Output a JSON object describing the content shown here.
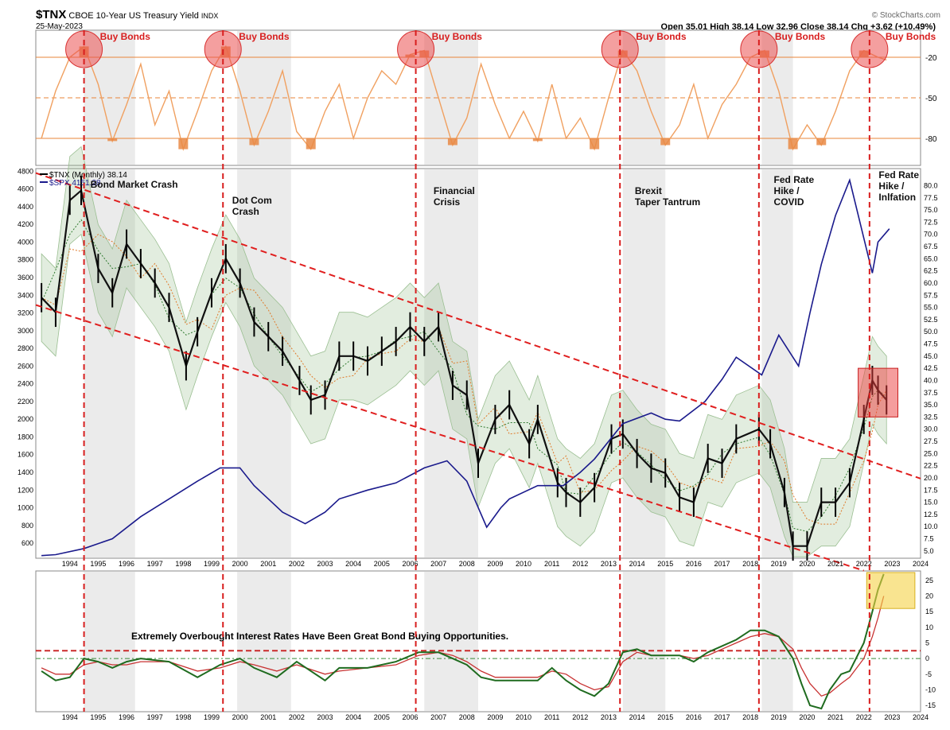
{
  "header": {
    "symbol": "$TNX",
    "name": "CBOE 10-Year US Treasury Yield",
    "exchange": "INDX",
    "date": "25-May-2023",
    "brand": "© StockCharts.com",
    "quote": "Open 35.01  High 38.14  Low 32.96  Close 38.14  Chg +3.62 (+10.49%)"
  },
  "chart_data": [
    {
      "type": "line",
      "panel": "top-oscillator",
      "ylim": [
        -100,
        0
      ],
      "reference_lines": [
        -20,
        -50,
        -80
      ],
      "tick_labels": [
        "-20",
        "-50",
        "-80"
      ],
      "highlight_label": "Buy Bonds",
      "buy_signals_years": [
        1995.0,
        1999.9,
        2006.7,
        2013.9,
        2018.8,
        2022.7
      ],
      "x_years": [
        1993.5,
        1994,
        1994.5,
        1995,
        1995.5,
        1996,
        1996.5,
        1997,
        1997.5,
        1998,
        1998.5,
        1999,
        1999.5,
        2000,
        2000.5,
        2001,
        2001.5,
        2002,
        2002.5,
        2003,
        2003.5,
        2004,
        2004.5,
        2005,
        2005.5,
        2006,
        2006.5,
        2007,
        2007.5,
        2008,
        2008.5,
        2009,
        2009.5,
        2010,
        2010.5,
        2011,
        2011.5,
        2012,
        2012.5,
        2013,
        2013.5,
        2014,
        2014.5,
        2015,
        2015.5,
        2016,
        2016.5,
        2017,
        2017.5,
        2018,
        2018.5,
        2019,
        2019.5,
        2020,
        2020.5,
        2021,
        2021.5,
        2022,
        2022.5,
        2023,
        2023.3
      ],
      "values": [
        -80,
        -45,
        -20,
        -12,
        -40,
        -82,
        -55,
        -25,
        -70,
        -45,
        -88,
        -60,
        -30,
        -12,
        -45,
        -85,
        -60,
        -30,
        -75,
        -88,
        -60,
        -40,
        -80,
        -50,
        -30,
        -40,
        -18,
        -15,
        -50,
        -85,
        -65,
        -25,
        -55,
        -80,
        -60,
        -82,
        -40,
        -80,
        -65,
        -88,
        -50,
        -15,
        -30,
        -60,
        -85,
        -70,
        -40,
        -80,
        -55,
        -40,
        -20,
        -15,
        -45,
        -88,
        -70,
        -85,
        -60,
        -30,
        -15,
        -20,
        -22
      ],
      "series": [
        {
          "name": "",
          "values": []
        }
      ]
    },
    {
      "type": "line",
      "panel": "main",
      "annotations": [
        "Bond Market Crash",
        "Dot Com Crash",
        "Financial Crisis",
        "Brexit Taper Tantrum",
        "Fed Rate Hike / COVID",
        "Fed Rate Hike / Inlfation"
      ],
      "legend": [
        {
          "name": "$TNX (Monthly) 38.14",
          "color": "#000000"
        },
        {
          "name": "$SPX 4151.28",
          "color": "#1a1a8c"
        }
      ],
      "x_ticks": [
        "1994",
        "1995",
        "1996",
        "1997",
        "1998",
        "1999",
        "2000",
        "2001",
        "2002",
        "2003",
        "2004",
        "2005",
        "2006",
        "2007",
        "2008",
        "2009",
        "2010",
        "2011",
        "2012",
        "2013",
        "2014",
        "2015",
        "2016",
        "2017",
        "2018",
        "2019",
        "2020",
        "2021",
        "2022",
        "2023",
        "2024"
      ],
      "y_left_ticks": [
        600,
        800,
        1000,
        1200,
        1400,
        1600,
        1800,
        2000,
        2200,
        2400,
        2600,
        2800,
        3000,
        3200,
        3400,
        3600,
        3800,
        4000,
        4200,
        4400,
        4600,
        4800
      ],
      "y_left_range": [
        430,
        4830
      ],
      "y_right_ticks": [
        "5.0",
        "7.5",
        "10.0",
        "12.5",
        "15.0",
        "17.5",
        "20.0",
        "22.5",
        "25.0",
        "27.5",
        "30.0",
        "32.5",
        "35.0",
        "37.5",
        "40.0",
        "42.5",
        "45.0",
        "47.5",
        "50.0",
        "52.5",
        "55.0",
        "57.5",
        "60.0",
        "62.5",
        "65.0",
        "67.5",
        "70.0",
        "72.5",
        "75.0",
        "77.5",
        "80.0"
      ],
      "y_right_range": [
        3.5,
        83.5
      ],
      "tnx_series": {
        "name": "$TNX",
        "x": [
          1993.5,
          1994,
          1994.5,
          1994.9,
          1995.5,
          1996,
          1996.5,
          1997,
          1997.5,
          1998,
          1998.6,
          1999,
          1999.5,
          2000,
          2000.5,
          2001,
          2001.5,
          2002,
          2002.6,
          2003,
          2003.5,
          2004,
          2004.5,
          2005,
          2005.5,
          2006,
          2006.5,
          2007,
          2007.5,
          2008,
          2008.5,
          2008.9,
          2009.5,
          2010,
          2010.7,
          2011,
          2011.7,
          2012,
          2012.5,
          2013,
          2013.6,
          2014,
          2014.5,
          2015,
          2015.5,
          2016,
          2016.5,
          2017,
          2017.5,
          2018,
          2018.8,
          2019.2,
          2019.7,
          2020,
          2020.5,
          2021,
          2021.5,
          2022,
          2022.5,
          2022.8,
          2023,
          2023.3
        ],
        "values": [
          57,
          54,
          77,
          79,
          63,
          58,
          68,
          64,
          60,
          55,
          43,
          50,
          58,
          65,
          60,
          52,
          49,
          46,
          40,
          36,
          37,
          45,
          45,
          44,
          46,
          48,
          51,
          48,
          51,
          39,
          37,
          23,
          32,
          35,
          27,
          32,
          19,
          17,
          15,
          18,
          28,
          29,
          25,
          22,
          21,
          16,
          15,
          24,
          23,
          28,
          30,
          27,
          17,
          6,
          6,
          15,
          15,
          19,
          32,
          40,
          38,
          36
        ]
      },
      "spx_series": {
        "name": "$SPX",
        "x": [
          1993.5,
          1994,
          1995,
          1996,
          1997,
          1998,
          1999,
          1999.8,
          2000.5,
          2001,
          2001.5,
          2002,
          2002.8,
          2003.5,
          2004,
          2005,
          2006,
          2007,
          2007.8,
          2008.5,
          2009.2,
          2009.7,
          2010,
          2011,
          2011.9,
          2012.5,
          2013,
          2014,
          2015,
          2015.5,
          2016,
          2016.9,
          2017.5,
          2018,
          2018.9,
          2019.5,
          2020.2,
          2020.6,
          2021,
          2021.5,
          2022,
          2022.8,
          2023,
          2023.4
        ],
        "values": [
          460,
          470,
          540,
          650,
          900,
          1100,
          1300,
          1450,
          1450,
          1250,
          1100,
          950,
          820,
          950,
          1100,
          1200,
          1280,
          1450,
          1530,
          1300,
          780,
          1000,
          1100,
          1250,
          1250,
          1400,
          1550,
          1950,
          2070,
          2000,
          1980,
          2200,
          2450,
          2700,
          2500,
          2950,
          2600,
          3200,
          3750,
          4300,
          4700,
          3650,
          4000,
          4150
        ]
      },
      "channel_lines": [
        {
          "from": [
            1993.3,
            4780
          ],
          "to": [
            2024.5,
            1330
          ]
        },
        {
          "from": [
            1993.3,
            3290
          ],
          "to": [
            2022.5,
            290
          ]
        }
      ]
    },
    {
      "type": "line",
      "panel": "bottom-oscillator",
      "caption": "Extremely Overbought Interest Rates Have Been Great Bond Buying Opportunities.",
      "ylim": [
        -17,
        28
      ],
      "y_ticks": [
        "25",
        "20",
        "15",
        "10",
        "5",
        "0",
        "-5",
        "-10",
        "-15"
      ],
      "x_ticks": [
        "1994",
        "1995",
        "1996",
        "1997",
        "1998",
        "1999",
        "2000",
        "2001",
        "2002",
        "2003",
        "2004",
        "2005",
        "2006",
        "2007",
        "2008",
        "2009",
        "2010",
        "2011",
        "2012",
        "2013",
        "2014",
        "2015",
        "2016",
        "2017",
        "2018",
        "2019",
        "2020",
        "2021",
        "2022",
        "2023",
        "2024"
      ],
      "threshold": 2.5,
      "zero_line": 0,
      "x_years": [
        1993.5,
        1994,
        1994.5,
        1995,
        1995.5,
        1996,
        1996.5,
        1997,
        1998,
        1999,
        1999.8,
        2000.5,
        2001,
        2001.8,
        2002.5,
        2003.5,
        2004,
        2005,
        2006,
        2006.8,
        2007.5,
        2008,
        2008.5,
        2009,
        2009.5,
        2010,
        2011,
        2011.5,
        2012,
        2012.5,
        2013,
        2013.5,
        2014,
        2014.5,
        2015,
        2016,
        2016.5,
        2017,
        2017.5,
        2018,
        2018.5,
        2019,
        2019.5,
        2020,
        2020.3,
        2020.6,
        2021,
        2021.3,
        2021.7,
        2022,
        2022.5,
        2022.8,
        2023,
        2023.2
      ],
      "green_values": [
        -4,
        -7,
        -6,
        0,
        -1,
        -3,
        -1,
        0,
        -1,
        -6,
        -2,
        0,
        -3,
        -6,
        -1,
        -7,
        -3,
        -3,
        -1,
        2,
        2,
        0,
        -2,
        -6,
        -7,
        -7,
        -7,
        -3,
        -7,
        -10,
        -12,
        -8,
        2,
        3,
        1,
        1,
        -1,
        2,
        4,
        6,
        9,
        9,
        7,
        0,
        -8,
        -15,
        -16,
        -10,
        -5,
        -4,
        5,
        15,
        22,
        27
      ],
      "red_values": [
        -3,
        -5,
        -5,
        -2,
        -1,
        -2,
        -2,
        -1,
        -1,
        -4,
        -3,
        -1,
        -2,
        -4,
        -2,
        -5,
        -4,
        -3,
        -2,
        1,
        2,
        1,
        -1,
        -4,
        -6,
        -6,
        -6,
        -4,
        -5,
        -8,
        -10,
        -9,
        -1,
        2,
        1,
        1,
        0,
        1,
        3,
        5,
        7,
        8,
        7,
        3,
        -3,
        -8,
        -12,
        -11,
        -8,
        -6,
        0,
        7,
        13,
        20
      ],
      "series": [
        {
          "name": "",
          "values": []
        },
        {
          "name": "",
          "values": []
        }
      ]
    }
  ]
}
